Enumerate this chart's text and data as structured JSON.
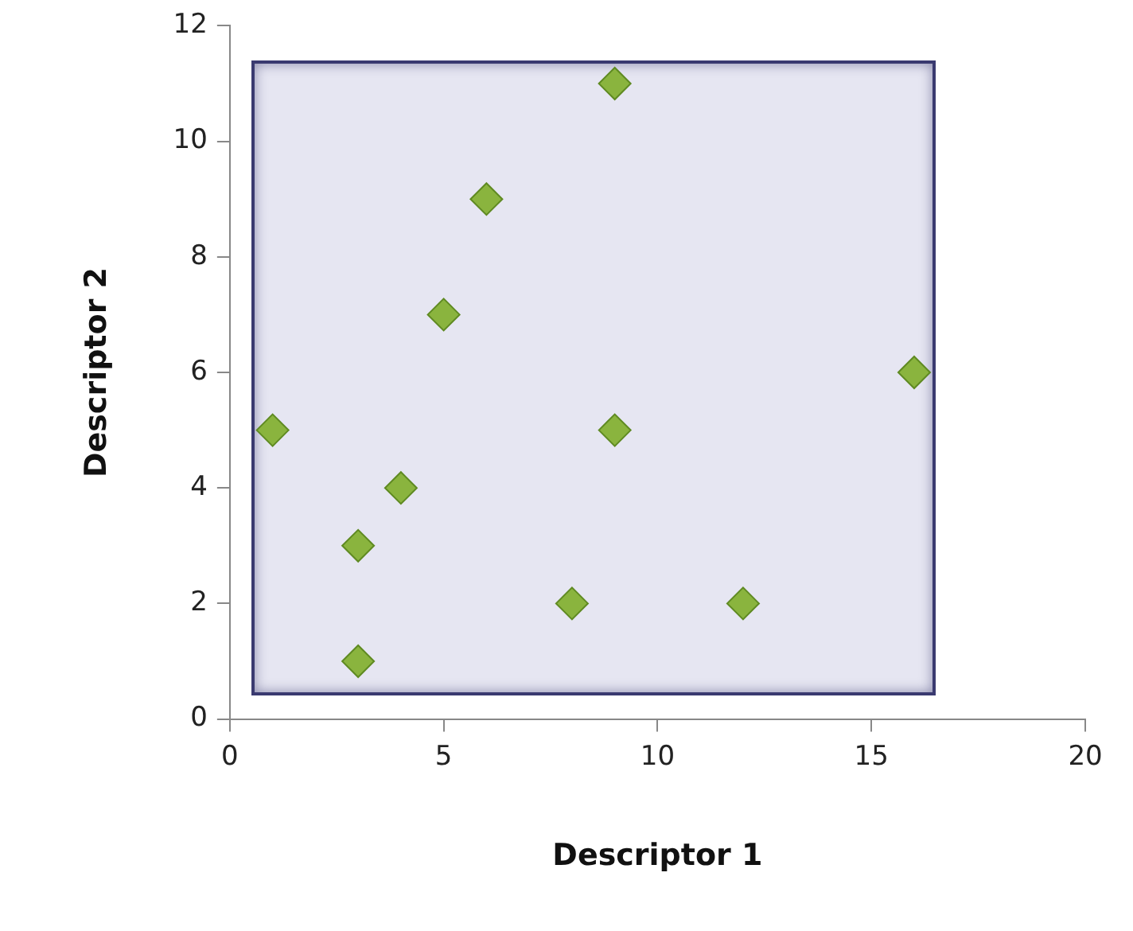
{
  "chart_data": {
    "type": "scatter",
    "xlabel": "Descriptor 1",
    "ylabel": "Descriptor 2",
    "x": [
      1,
      3,
      3,
      4,
      5,
      6,
      8,
      9,
      9,
      12,
      16
    ],
    "series": [
      {
        "color": "#8ab43e",
        "values": [
          5,
          3,
          1,
          4,
          7,
          9,
          2,
          11,
          5,
          2,
          6
        ]
      }
    ],
    "xlim": [
      0,
      20
    ],
    "xticks": [
      0,
      5,
      10,
      15,
      20
    ],
    "ylim": [
      0,
      12
    ],
    "yticks": [
      0,
      2,
      4,
      6,
      8,
      10,
      12
    ],
    "grid": false,
    "legend": false,
    "marker": "diamond"
  }
}
